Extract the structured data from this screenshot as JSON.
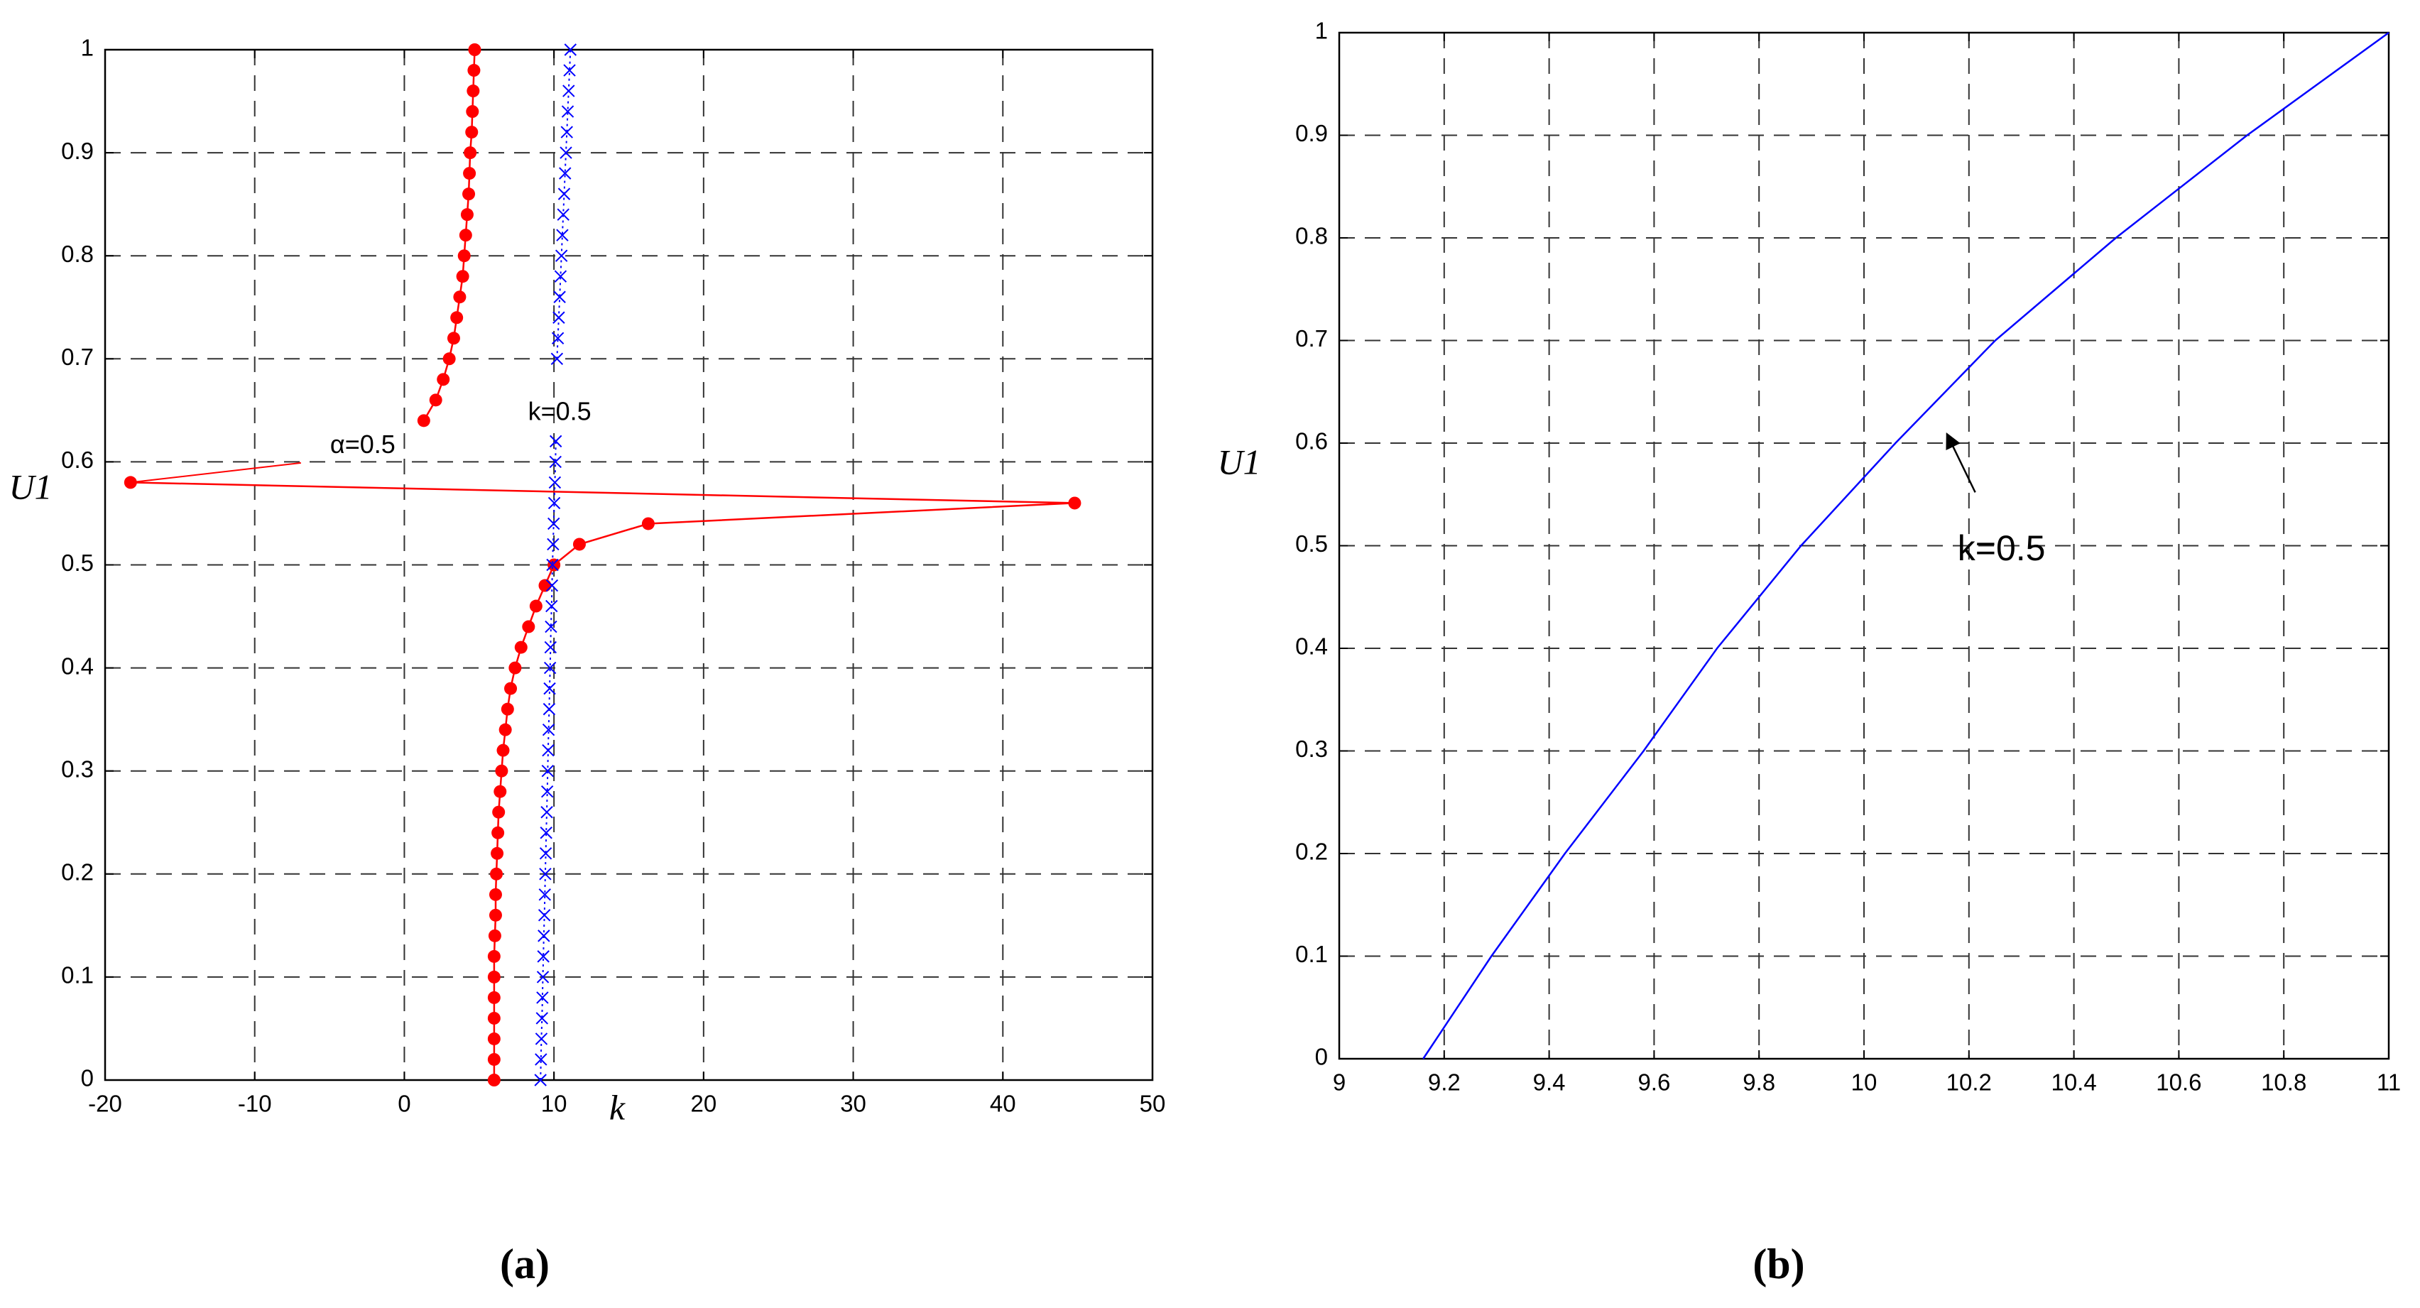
{
  "chart_data": [
    {
      "type": "line",
      "caption": "(a)",
      "x_label": "k",
      "y_label": "U1",
      "xlim": [
        -20,
        50
      ],
      "xticks": [
        -20,
        -10,
        0,
        10,
        20,
        30,
        40,
        50
      ],
      "ylim": [
        0,
        1
      ],
      "yticks": [
        0,
        0.1,
        0.2,
        0.3,
        0.4,
        0.5,
        0.6,
        0.7,
        0.8,
        0.9,
        1
      ],
      "grid": true,
      "annotations": [
        {
          "text": "α=0.5"
        },
        {
          "text": "k=0.5"
        }
      ],
      "series": [
        {
          "color": "#ff0000",
          "marker": "o",
          "linestyle": "solid",
          "x": [
            6.0,
            6.0,
            6.0,
            6.0,
            6.0,
            6.0,
            6.0,
            6.05,
            6.1,
            6.1,
            6.15,
            6.2,
            6.25,
            6.3,
            6.4,
            6.5,
            6.6,
            6.75,
            6.9,
            7.1,
            7.4,
            7.8,
            8.3,
            8.8,
            9.4,
            10.0,
            11.7,
            16.3,
            44.8,
            -18.3,
            null,
            null,
            1.3,
            2.1,
            2.6,
            3.0,
            3.3,
            3.5,
            3.7,
            3.9,
            4.0,
            4.1,
            4.2,
            4.3,
            4.35,
            4.4,
            4.5,
            4.55,
            4.6,
            4.65,
            4.7
          ],
          "values": [
            0,
            0.02,
            0.04,
            0.06,
            0.08,
            0.1,
            0.12,
            0.14,
            0.16,
            0.18,
            0.2,
            0.22,
            0.24,
            0.26,
            0.28,
            0.3,
            0.32,
            0.34,
            0.36,
            0.38,
            0.4,
            0.42,
            0.44,
            0.46,
            0.48,
            0.5,
            0.52,
            0.54,
            0.56,
            0.58,
            null,
            null,
            0.64,
            0.66,
            0.68,
            0.7,
            0.72,
            0.74,
            0.76,
            0.78,
            0.8,
            0.82,
            0.84,
            0.86,
            0.88,
            0.9,
            0.92,
            0.94,
            0.96,
            0.98,
            1
          ]
        },
        {
          "color": "#0000ff",
          "marker": "x",
          "linestyle": "dotted",
          "x": [
            9.1,
            9.13,
            9.16,
            9.2,
            9.23,
            9.26,
            9.29,
            9.32,
            9.36,
            9.39,
            9.42,
            9.45,
            9.48,
            9.52,
            9.55,
            9.58,
            9.61,
            9.64,
            9.68,
            9.71,
            9.74,
            9.77,
            9.8,
            9.84,
            9.87,
            9.9,
            9.94,
            9.98,
            10.02,
            10.06,
            10.1,
            10.12,
            null,
            null,
            null,
            10.2,
            10.26,
            10.32,
            10.38,
            10.44,
            10.5,
            10.56,
            10.62,
            10.68,
            10.74,
            10.8,
            10.86,
            10.92,
            10.98,
            11.04,
            11.1
          ],
          "values": [
            0,
            0.02,
            0.04,
            0.06,
            0.08,
            0.1,
            0.12,
            0.14,
            0.16,
            0.18,
            0.2,
            0.22,
            0.24,
            0.26,
            0.28,
            0.3,
            0.32,
            0.34,
            0.36,
            0.38,
            0.4,
            0.42,
            0.44,
            0.46,
            0.48,
            0.5,
            0.52,
            0.54,
            0.56,
            0.58,
            0.6,
            0.62,
            null,
            null,
            null,
            0.7,
            0.72,
            0.74,
            0.76,
            0.78,
            0.8,
            0.82,
            0.84,
            0.86,
            0.88,
            0.9,
            0.92,
            0.94,
            0.96,
            0.98,
            1
          ]
        }
      ]
    },
    {
      "type": "line",
      "caption": "(b)",
      "y_label": "U1",
      "xlim": [
        9,
        11
      ],
      "xticks": [
        9,
        9.2,
        9.4,
        9.6,
        9.8,
        10,
        10.2,
        10.4,
        10.6,
        10.8,
        11
      ],
      "ylim": [
        0,
        1
      ],
      "yticks": [
        0,
        0.1,
        0.2,
        0.3,
        0.4,
        0.5,
        0.6,
        0.7,
        0.8,
        0.9,
        1
      ],
      "grid": true,
      "annotations": [
        {
          "text": "k=0.5"
        }
      ],
      "series": [
        {
          "color": "#0000ff",
          "marker": "none",
          "linestyle": "solid",
          "x": [
            9.16,
            9.29,
            9.43,
            9.58,
            9.72,
            9.88,
            10.06,
            10.25,
            10.48,
            10.73,
            11.0
          ],
          "values": [
            0,
            0.1,
            0.2,
            0.3,
            0.4,
            0.5,
            0.6,
            0.7,
            0.8,
            0.9,
            1
          ]
        }
      ]
    }
  ]
}
